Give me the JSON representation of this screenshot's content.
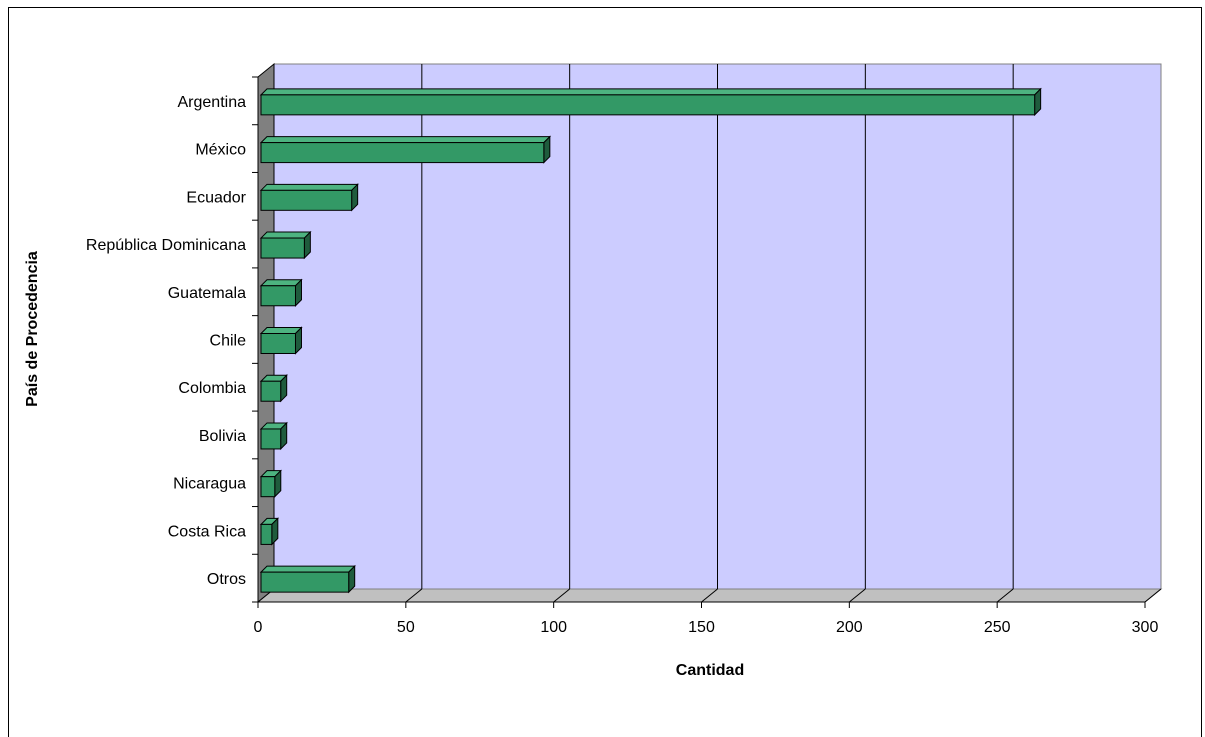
{
  "chart_data": {
    "type": "bar",
    "orientation": "horizontal",
    "style": "3d",
    "xlabel": "Cantidad",
    "ylabel": "País de Procedencia",
    "xlim": [
      0,
      300
    ],
    "xticks": [
      "0",
      "50",
      "100",
      "150",
      "200",
      "250",
      "300"
    ],
    "grid": true,
    "legend": "none",
    "categories": [
      "Argentina",
      "México",
      "Ecuador",
      "República Dominicana",
      "Guatemala",
      "Chile",
      "Colombia",
      "Bolivia",
      "Nicaragua",
      "Costa Rica",
      "Otros"
    ],
    "values": [
      262,
      96,
      31,
      15,
      12,
      12,
      7,
      7,
      5,
      4,
      30
    ],
    "colors": {
      "plot_background": "#ccccff",
      "bar_front": "#339966",
      "bar_top": "#4db380",
      "bar_side": "#1f5c3d",
      "side_wall": "#808080",
      "floor": "#c0c0c0"
    }
  }
}
